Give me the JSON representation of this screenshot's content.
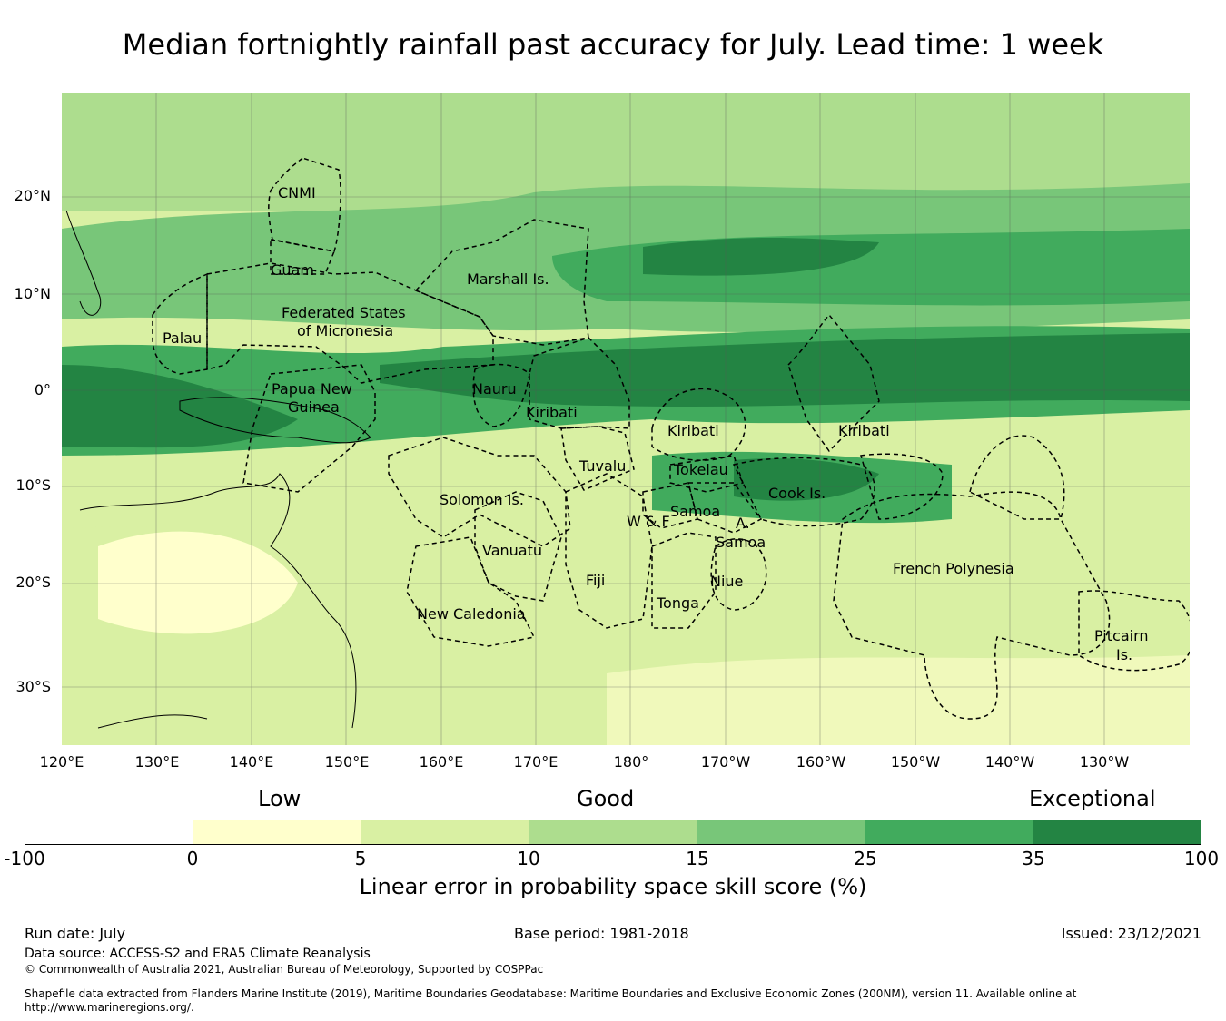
{
  "title": "Median fortnightly rainfall past accuracy for July. Lead time: 1 week",
  "map": {
    "lat_labels": [
      "20°N",
      "10°N",
      "0°",
      "10°S",
      "20°S",
      "30°S"
    ],
    "lon_labels": [
      "120°E",
      "130°E",
      "140°E",
      "150°E",
      "160°E",
      "170°E",
      "180°",
      "170°W",
      "160°W",
      "150°W",
      "140°W",
      "130°W"
    ],
    "regions": [
      "CNMI",
      "Guam",
      "Marshall Is.",
      "Federated States",
      "of Micronesia",
      "Palau",
      "Papua New",
      "Guinea",
      "Nauru",
      "Kiribati",
      "Kiribati",
      "Kiribati",
      "Tuvalu",
      "Tokelau",
      "Solomon Is.",
      "Cook Is.",
      "W & F",
      "Samoa",
      "A.",
      "Samoa",
      "Vanuatu",
      "Fiji",
      "Niue",
      "Tonga",
      "French Polynesia",
      "New Caledonia",
      "Pitcairn",
      "Is."
    ]
  },
  "legend": {
    "categories": [
      "Low",
      "Good",
      "Exceptional"
    ],
    "ticks": [
      "-100",
      "0",
      "5",
      "10",
      "15",
      "25",
      "35",
      "100"
    ],
    "colors": [
      "#ffffff",
      "#ffffcc",
      "#d9f0a3",
      "#addd8e",
      "#78c679",
      "#41ab5d",
      "#238443"
    ],
    "title": "Linear error in probability space skill score (%)"
  },
  "footer": {
    "run_date": "Run date: July",
    "base_period": "Base period: 1981-2018",
    "issued": "Issued: 23/12/2021",
    "data_source": "Data source: ACCESS-S2 and ERA5 Climate Reanalysis",
    "copyright": "© Commonwealth of Australia 2021, Australian Bureau of Meteorology, Supported by COSPPac",
    "shapefile": "Shapefile data extracted from Flanders Marine Institute (2019), Maritime Boundaries Geodatabase: Maritime Boundaries and Exclusive Economic Zones (200NM), version 11. Available online at http://www.marineregions.org/."
  }
}
